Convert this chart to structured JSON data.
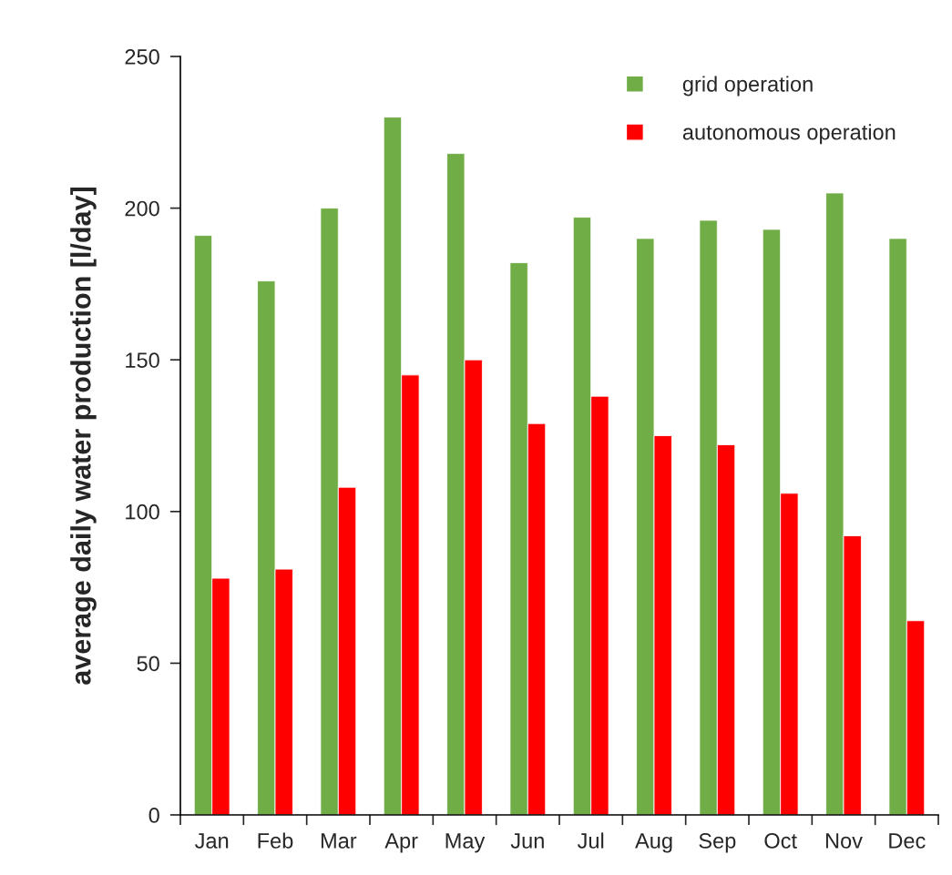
{
  "chart_data": {
    "type": "bar",
    "ylabel": "average daily water production [l/day]",
    "categories": [
      "Jan",
      "Feb",
      "Mar",
      "Apr",
      "May",
      "Jun",
      "Jul",
      "Aug",
      "Sep",
      "Oct",
      "Nov",
      "Dec"
    ],
    "series": [
      {
        "name": "grid operation",
        "color": "#70ad47",
        "values": [
          191,
          176,
          200,
          230,
          218,
          182,
          197,
          190,
          196,
          193,
          205,
          190
        ]
      },
      {
        "name": "autonomous operation",
        "color": "#ff0000",
        "values": [
          78,
          81,
          108,
          145,
          150,
          129,
          138,
          125,
          122,
          106,
          92,
          64
        ]
      }
    ],
    "ylim": [
      0,
      250
    ],
    "yticks": [
      0,
      50,
      100,
      150,
      200,
      250
    ],
    "grid": false,
    "legend": "top right"
  }
}
